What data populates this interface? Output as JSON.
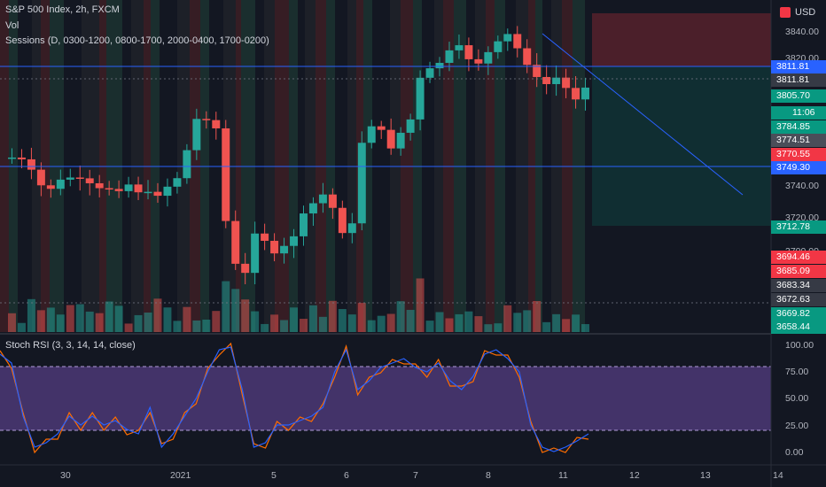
{
  "header": {
    "title": "S&P 500 Index, 2h, FXCM",
    "vol_label": "Vol",
    "sessions_label": "Sessions (D, 0300-1200, 0800-1700, 2000-0400, 1700-0200)",
    "currency": "USD"
  },
  "price_axis": {
    "ticks": [
      "3840.00",
      "3820.00",
      "3740.00",
      "3720.00",
      "3700.00"
    ],
    "tags": [
      {
        "text": "3811.81",
        "bg": "#2962ff"
      },
      {
        "text": "3811.81",
        "bg": "#363a45"
      },
      {
        "text": "3805.70",
        "bg": "#089981"
      },
      {
        "text": "11:06",
        "bg": "#089981"
      },
      {
        "text": "3784.85",
        "bg": "#089981"
      },
      {
        "text": "3774.51",
        "bg": "#4a4e59"
      },
      {
        "text": "3770.55",
        "bg": "#f23645"
      },
      {
        "text": "3749.30",
        "bg": "#2962ff"
      },
      {
        "text": "3712.78",
        "bg": "#089981"
      },
      {
        "text": "3694.46",
        "bg": "#f23645"
      },
      {
        "text": "3685.09",
        "bg": "#f23645"
      },
      {
        "text": "3683.34",
        "bg": "#363a45"
      },
      {
        "text": "3672.63",
        "bg": "#363a45"
      },
      {
        "text": "3669.82",
        "bg": "#089981"
      },
      {
        "text": "3658.44",
        "bg": "#089981"
      }
    ]
  },
  "stoch": {
    "label": "Stoch RSI (3, 3, 14, 14, close)",
    "ticks": [
      "100.00",
      "75.00",
      "50.00",
      "25.00",
      "0.00"
    ],
    "k_color": "#2962ff",
    "d_color": "#ff6d00"
  },
  "time_axis": {
    "labels": [
      "30",
      "2021",
      "5",
      "6",
      "7",
      "8",
      "11",
      "12",
      "13",
      "14"
    ]
  },
  "colors": {
    "up": "#26a69a",
    "down": "#ef5350",
    "background": "#131722",
    "horizontal_line": "#2962ff"
  }
}
